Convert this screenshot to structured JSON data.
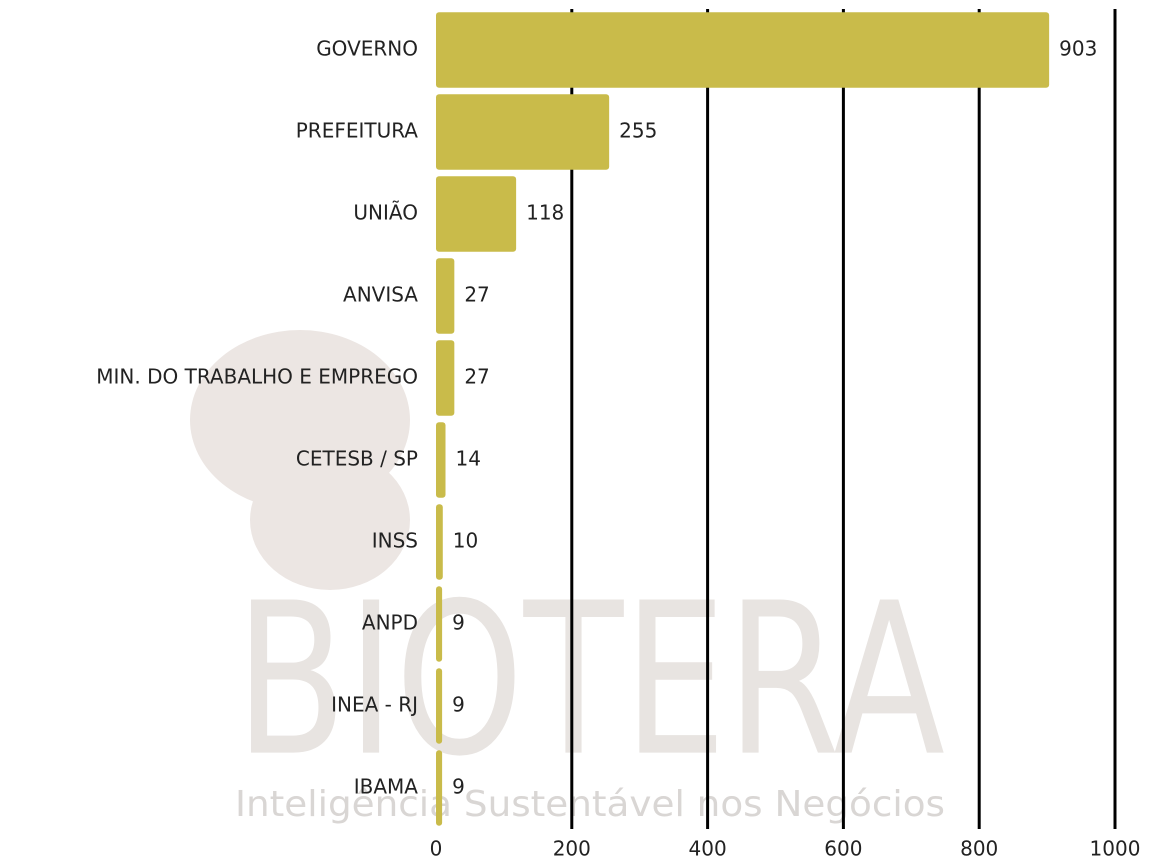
{
  "chart_data": {
    "type": "hbar",
    "categories": [
      "GOVERNO",
      "PREFEITURA",
      "UNIÃO",
      "ANVISA",
      "MIN. DO TRABALHO E EMPREGO",
      "CETESB / SP",
      "INSS",
      "ANPD",
      "INEA - RJ",
      "IBAMA"
    ],
    "values": [
      903,
      255,
      118,
      27,
      27,
      14,
      10,
      9,
      9,
      9
    ],
    "color": "#c9bb4a",
    "xlim": [
      0,
      1000
    ],
    "xticks": [
      0,
      200,
      400,
      600,
      800,
      1000
    ],
    "grid": true,
    "watermark": {
      "title": "BIOTERA",
      "subtitle": "Inteligência Sustentável nos Negócios"
    }
  }
}
